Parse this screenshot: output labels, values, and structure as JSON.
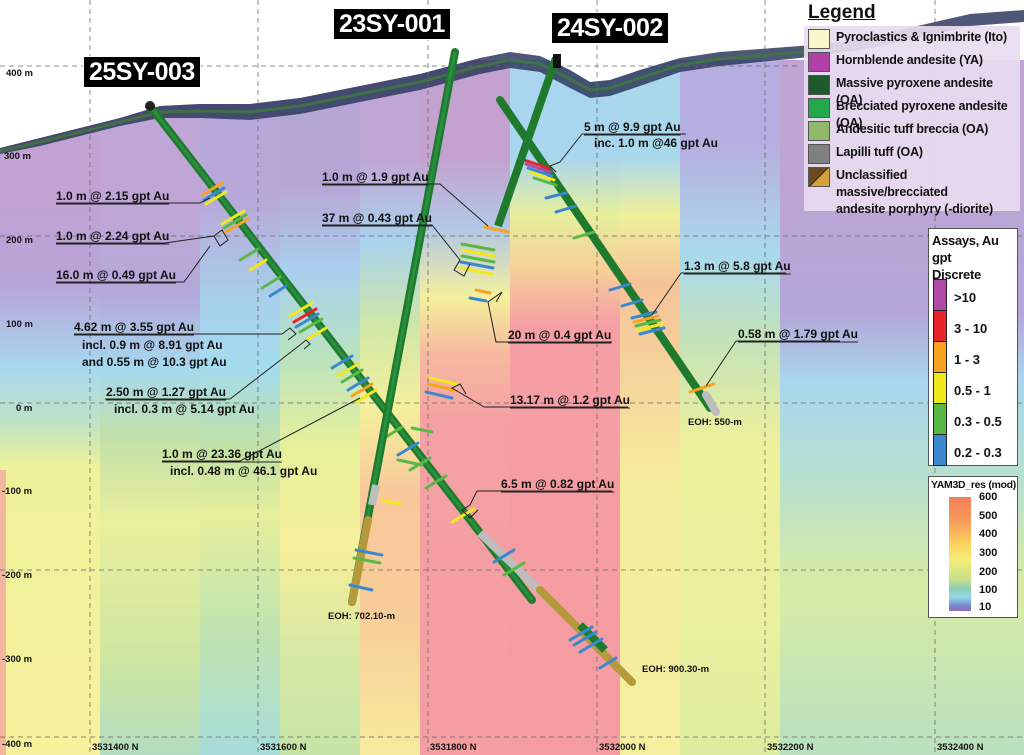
{
  "holes": [
    {
      "id": "25SY-003",
      "eoh": "EOH: 900.30-m"
    },
    {
      "id": "23SY-001",
      "eoh": "EOH: 702.10-m"
    },
    {
      "id": "24SY-002",
      "eoh": "EOH: 550-m"
    }
  ],
  "intercepts": {
    "h3_a": "1.0 m @ 2.15 gpt Au",
    "h3_b": "1.0 m @ 2.24 gpt Au",
    "h3_c": "16.0 m @ 0.49 gpt Au",
    "h3_d": "4.62 m @ 3.55 gpt Au",
    "h3_d1": "incl. 0.9 m @ 8.91 gpt Au",
    "h3_d2": "and 0.55 m @ 10.3 gpt Au",
    "h3_e": "2.50 m @ 1.27 gpt Au",
    "h3_e1": "incl. 0.3 m @ 5.14 gpt Au",
    "h3_f": "1.0 m @ 23.36 gpt Au",
    "h3_f1": "incl. 0.48 m @ 46.1 gpt Au",
    "h3_g": "6.5 m @ 0.82 gpt Au",
    "h1_a": "1.0 m @ 1.9 gpt Au",
    "h1_b": "37 m @ 0.43 gpt Au",
    "h1_c": "20 m @ 0.4 gpt Au",
    "h1_d": "13.17 m @ 1.2 gpt Au",
    "h2_a": "5 m @ 9.9 gpt Au",
    "h2_a1": "inc. 1.0 m @46 gpt Au",
    "h2_b": "1.3 m @ 5.8 gpt Au",
    "h2_c": "0.58 m @ 1.79 gpt Au"
  },
  "axes": {
    "y_ticks": [
      "400 m",
      "300 m",
      "200 m",
      "100 m",
      "0 m",
      "-100 m",
      "-200 m",
      "-300 m",
      "-400 m"
    ],
    "x_ticks": [
      "3531400 N",
      "3531600 N",
      "3531800 N",
      "3532000 N",
      "3532200 N",
      "3532400 N"
    ]
  },
  "legend": {
    "title": "Legend",
    "items": [
      {
        "label": "Pyroclastics & Ignimbrite (Ito)",
        "color": "#fbf6c8"
      },
      {
        "label": "Hornblende andesite (YA)",
        "color": "#b040a8"
      },
      {
        "label": "Massive pyroxene andesite (OA)",
        "color": "#1e5a2a"
      },
      {
        "label": "Brecciated pyroxene andesite (OA)",
        "color": "#22a84a"
      },
      {
        "label": "Andesitic tuff breccia (OA)",
        "color": "#8fb86a"
      },
      {
        "label": "Lapilli tuff (OA)",
        "color": "#808080"
      },
      {
        "label": "Unclassified massive/brecciated",
        "label2": "andesite porphyry (-diorite)",
        "color": "#6b4a1e",
        "color2": "#d4a23a"
      }
    ]
  },
  "assay_legend": {
    "title1": "Assays, Au gpt",
    "title2": "Discrete",
    "bins": [
      {
        "label": ">10",
        "color": "#b048a8"
      },
      {
        "label": "3 - 10",
        "color": "#e8232a"
      },
      {
        "label": "1 - 3",
        "color": "#f7a321"
      },
      {
        "label": "0.5 - 1",
        "color": "#f2e81e"
      },
      {
        "label": "0.3 - 0.5",
        "color": "#5ab847"
      },
      {
        "label": "0.2 - 0.3",
        "color": "#3b88cf"
      }
    ]
  },
  "res_legend": {
    "title": "YAM3D_res (mod)",
    "ticks": [
      "600",
      "500",
      "400",
      "300",
      "200",
      "100",
      "10"
    ]
  }
}
